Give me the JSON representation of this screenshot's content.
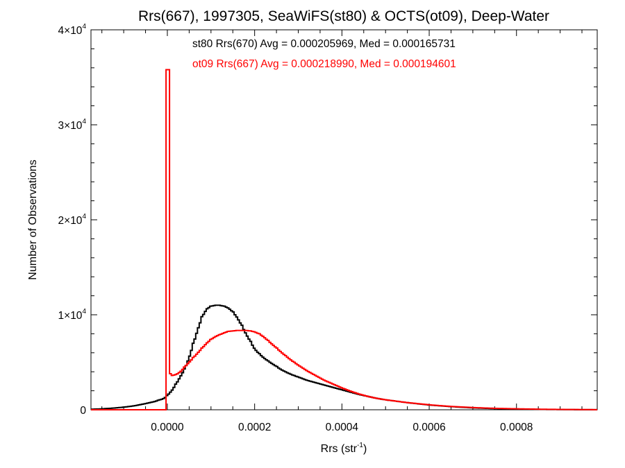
{
  "chart_data": {
    "type": "line",
    "title": "Rrs(667), 1997305, SeaWiFS(st80) & OCTS(ot09), Deep-Water",
    "xlabel_base": "Rrs (str",
    "xlabel_sup": "-1",
    "xlabel_close": ")",
    "ylabel": "Number of Observations",
    "xlim": [
      -0.000175,
      0.000985
    ],
    "ylim": [
      0,
      40000
    ],
    "x_ticks": [
      {
        "value": 0.0,
        "label": "0.0000"
      },
      {
        "value": 0.0002,
        "label": "0.0002"
      },
      {
        "value": 0.0004,
        "label": "0.0004"
      },
      {
        "value": 0.0006,
        "label": "0.0006"
      },
      {
        "value": 0.0008,
        "label": "0.0008"
      }
    ],
    "y_ticks": [
      {
        "value": 0,
        "base": "0",
        "exp": ""
      },
      {
        "value": 10000,
        "base": "1×10",
        "exp": "4"
      },
      {
        "value": 20000,
        "base": "2×10",
        "exp": "4"
      },
      {
        "value": 30000,
        "base": "3×10",
        "exp": "4"
      },
      {
        "value": 40000,
        "base": "4×10",
        "exp": "4"
      }
    ],
    "annotations": [
      {
        "text": "st80 Rrs(670) Avg = 0.000205969, Med = 0.000165731",
        "color": "#000000"
      },
      {
        "text": "ot09 Rrs(667) Avg = 0.000218990, Med = 0.000194601",
        "color": "#ff0000"
      }
    ],
    "series": [
      {
        "color": "#000000",
        "x": [
          -0.000175,
          -0.00015,
          -0.000125,
          -0.0001,
          -7.5e-05,
          -5e-05,
          -3e-05,
          -2e-05,
          -1e-05,
          -5e-06,
          0.0,
          1e-05,
          2e-05,
          3e-05,
          4e-05,
          5e-05,
          6e-05,
          7e-05,
          8e-05,
          9e-05,
          0.0001,
          0.00011,
          0.00012,
          0.00013,
          0.00014,
          0.00015,
          0.00016,
          0.00017,
          0.00018,
          0.00019,
          0.0002,
          0.00021,
          0.00022,
          0.00023,
          0.00024,
          0.00025,
          0.00026,
          0.00027,
          0.00028,
          0.00029,
          0.0003,
          0.00032,
          0.00034,
          0.00036,
          0.00038,
          0.0004,
          0.00042,
          0.00044,
          0.00046,
          0.00048,
          0.0005,
          0.00055,
          0.0006,
          0.00065,
          0.0007,
          0.00075,
          0.0008,
          0.00085,
          0.0009,
          0.00095,
          0.000985
        ],
        "y": [
          50,
          100,
          170,
          270,
          420,
          650,
          850,
          1000,
          1150,
          1300,
          1500,
          2000,
          2700,
          3500,
          4300,
          5500,
          7000,
          8500,
          9800,
          10600,
          10900,
          11000,
          11000,
          10900,
          10700,
          10300,
          9700,
          8900,
          8000,
          7200,
          6400,
          5900,
          5500,
          5150,
          4850,
          4550,
          4250,
          4000,
          3800,
          3600,
          3450,
          3100,
          2850,
          2600,
          2350,
          2100,
          1850,
          1600,
          1400,
          1200,
          1050,
          750,
          500,
          330,
          200,
          120,
          70,
          40,
          20,
          10,
          5
        ]
      },
      {
        "color": "#ff0000",
        "x": [
          -0.000175,
          -1e-05,
          -5e-06,
          -1e-06,
          0.0,
          1e-06,
          2e-06,
          5e-06,
          1e-05,
          2e-05,
          3e-05,
          4e-05,
          5e-05,
          6e-05,
          7e-05,
          8e-05,
          9e-05,
          0.0001,
          0.00011,
          0.00012,
          0.00013,
          0.00014,
          0.00015,
          0.00016,
          0.00017,
          0.00018,
          0.00019,
          0.0002,
          0.00021,
          0.00022,
          0.00023,
          0.00024,
          0.00025,
          0.00026,
          0.00027,
          0.00028,
          0.00029,
          0.0003,
          0.00032,
          0.00034,
          0.00036,
          0.00038,
          0.0004,
          0.00042,
          0.00044,
          0.00046,
          0.00048,
          0.0005,
          0.00055,
          0.0006,
          0.00065,
          0.0007,
          0.00075,
          0.0008,
          0.00085,
          0.0009,
          0.00095,
          0.000985
        ],
        "y": [
          0,
          0,
          0,
          0,
          35800,
          35800,
          4500,
          3800,
          3600,
          3700,
          4000,
          4500,
          5000,
          5500,
          6000,
          6500,
          7000,
          7400,
          7700,
          7900,
          8100,
          8250,
          8300,
          8350,
          8350,
          8350,
          8300,
          8200,
          8000,
          7700,
          7300,
          6900,
          6500,
          6100,
          5700,
          5350,
          5000,
          4700,
          4100,
          3600,
          3100,
          2700,
          2300,
          1950,
          1650,
          1400,
          1200,
          1050,
          750,
          520,
          350,
          230,
          150,
          100,
          60,
          35,
          20,
          10
        ]
      }
    ]
  }
}
